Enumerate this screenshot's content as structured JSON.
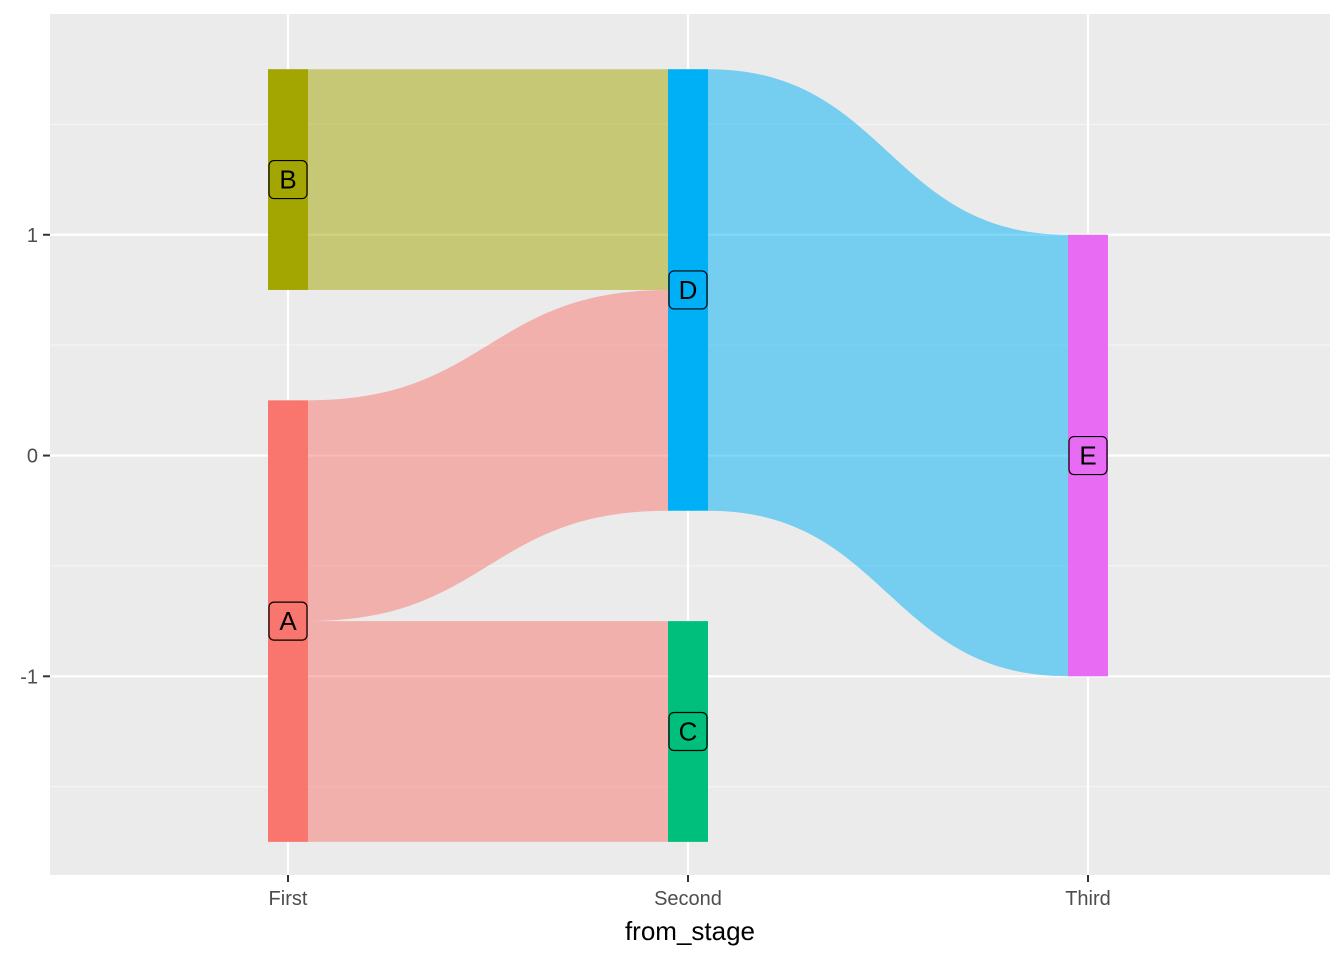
{
  "chart_data": {
    "type": "sankey",
    "title": "",
    "xlabel": "from_stage",
    "ylabel": "",
    "x_categories": [
      "First",
      "Second",
      "Third"
    ],
    "y_ticks": [
      -1,
      0,
      1
    ],
    "y_tick_labels": [
      "-1",
      "0",
      "1"
    ],
    "ylim": [
      -1.9,
      2.0
    ],
    "grid": true,
    "legend": "none",
    "nodes": [
      {
        "id": "A",
        "label": "A",
        "stage": 0,
        "ymin": -1.75,
        "ymax": 0.25,
        "label_y": -0.75,
        "color": "#F8766D"
      },
      {
        "id": "B",
        "label": "B",
        "stage": 0,
        "ymin": 0.75,
        "ymax": 1.75,
        "label_y": 1.25,
        "color": "#A3A500"
      },
      {
        "id": "C",
        "label": "C",
        "stage": 1,
        "ymin": -1.75,
        "ymax": -0.75,
        "label_y": -1.25,
        "color": "#00BF7D"
      },
      {
        "id": "D",
        "label": "D",
        "stage": 1,
        "ymin": -0.25,
        "ymax": 1.75,
        "label_y": 0.75,
        "color": "#00B0F6"
      },
      {
        "id": "E",
        "label": "E",
        "stage": 2,
        "ymin": -1.0,
        "ymax": 1.0,
        "label_y": 0.0,
        "color": "#E76BF3"
      }
    ],
    "flows": [
      {
        "from": "B",
        "to": "D",
        "value": 1,
        "from_range": [
          0.75,
          1.75
        ],
        "to_range": [
          0.75,
          1.75
        ],
        "color": "#A3A500"
      },
      {
        "from": "A",
        "to": "D",
        "value": 1,
        "from_range": [
          -0.75,
          0.25
        ],
        "to_range": [
          -0.25,
          0.75
        ],
        "color": "#F8766D"
      },
      {
        "from": "A",
        "to": "C",
        "value": 1,
        "from_range": [
          -1.75,
          -0.75
        ],
        "to_range": [
          -1.75,
          -0.75
        ],
        "color": "#F8766D"
      },
      {
        "from": "D",
        "to": "E",
        "value": 2,
        "from_range": [
          -0.25,
          1.75
        ],
        "to_range": [
          -1.0,
          1.0
        ],
        "color": "#00B0F6"
      }
    ],
    "colors": {
      "panel_background": "#EBEBEB",
      "grid_major": "#FFFFFF",
      "grid_minor": "#F5F5F5"
    }
  }
}
